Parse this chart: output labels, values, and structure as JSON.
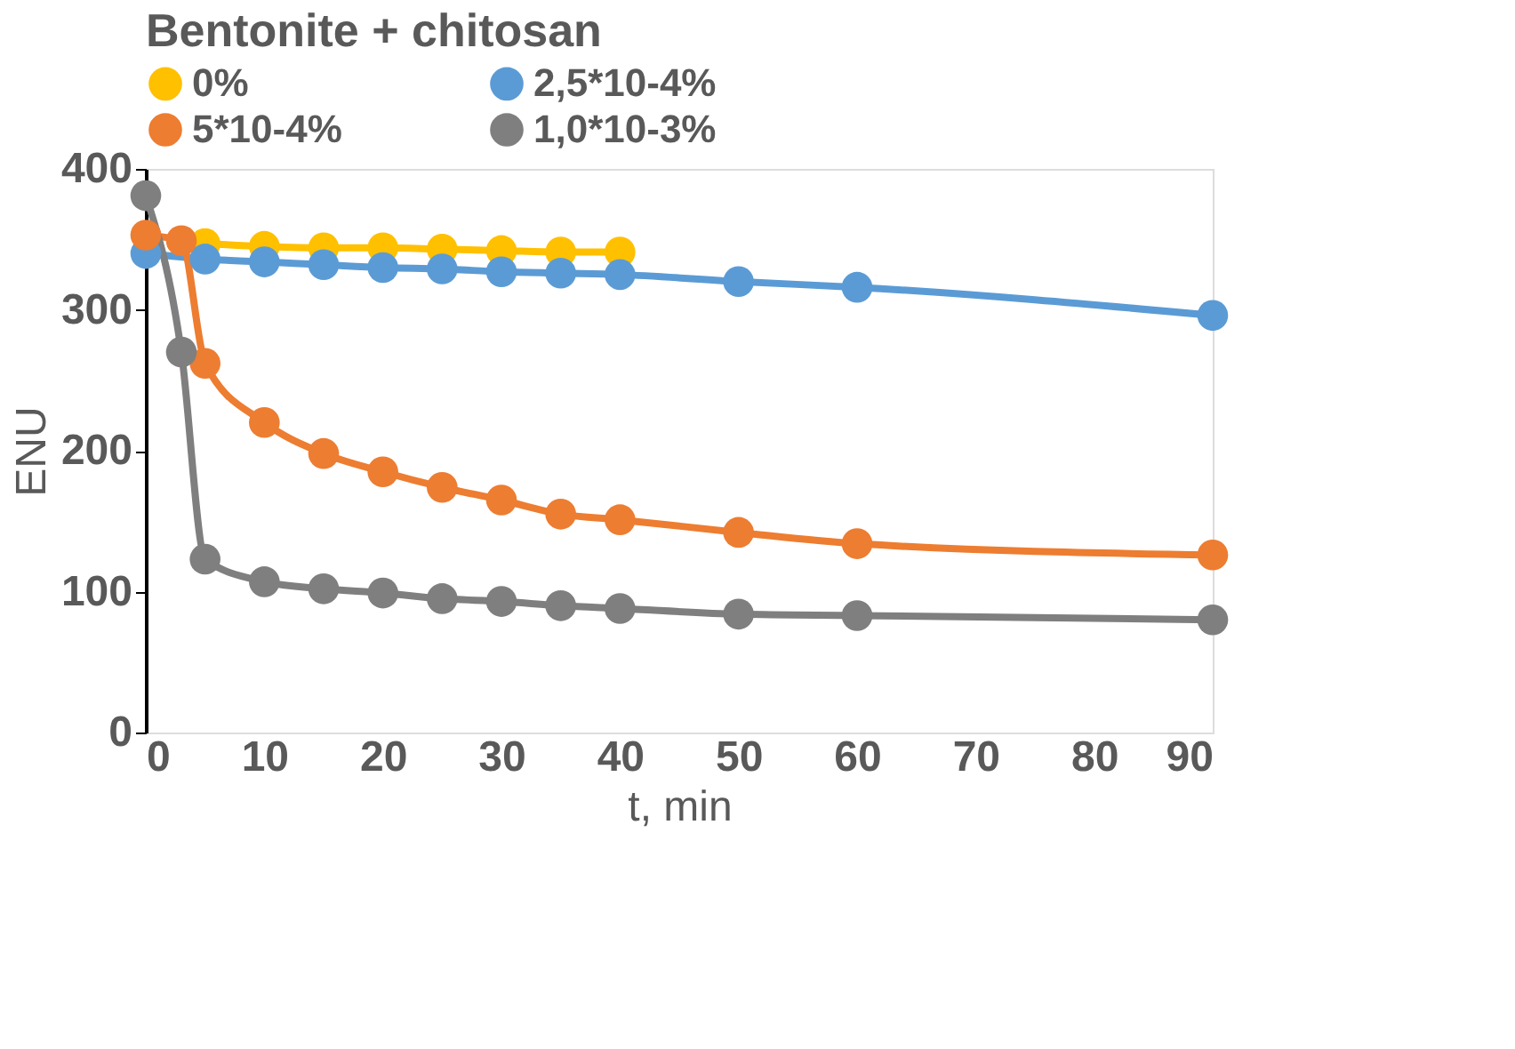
{
  "chart_data": {
    "type": "line",
    "legend_title": "Bentonite + chitosan",
    "xlabel": "t, min",
    "ylabel": "ENU",
    "xlim": [
      0,
      90
    ],
    "xticks": [
      0,
      10,
      20,
      30,
      40,
      50,
      60,
      70,
      80,
      90
    ],
    "ylim": [
      0,
      400
    ],
    "yticks": [
      0,
      100,
      200,
      300,
      400
    ],
    "grid": false,
    "legend": "top",
    "marker": "circle",
    "line_style": "solid",
    "series": [
      {
        "name": "0%",
        "color": "#ffc000",
        "x": [
          5,
          10,
          15,
          20,
          25,
          30,
          35,
          40
        ],
        "values": [
          347,
          345,
          344,
          344,
          343,
          342,
          341,
          341
        ]
      },
      {
        "name": "2,5*10-4%",
        "color": "#5b9bd5",
        "x": [
          0,
          5,
          10,
          15,
          20,
          25,
          30,
          35,
          40,
          50,
          60,
          90
        ],
        "values": [
          340,
          336,
          334,
          332,
          330,
          329,
          327,
          326,
          325,
          320,
          316,
          296
        ]
      },
      {
        "name": "5*10-4%",
        "color": "#ed7d31",
        "x": [
          0,
          3,
          5,
          10,
          15,
          20,
          25,
          30,
          35,
          40,
          50,
          60,
          90
        ],
        "values": [
          353,
          349,
          262,
          220,
          198,
          185,
          174,
          165,
          155,
          151,
          142,
          134,
          126
        ]
      },
      {
        "name": "1,0*10-3%",
        "color": "#7f7f7f",
        "x": [
          0,
          3,
          5,
          10,
          15,
          20,
          25,
          30,
          35,
          40,
          50,
          60,
          90
        ],
        "values": [
          381,
          270,
          123,
          107,
          102,
          99,
          95,
          93,
          90,
          88,
          84,
          83,
          80
        ]
      }
    ]
  }
}
